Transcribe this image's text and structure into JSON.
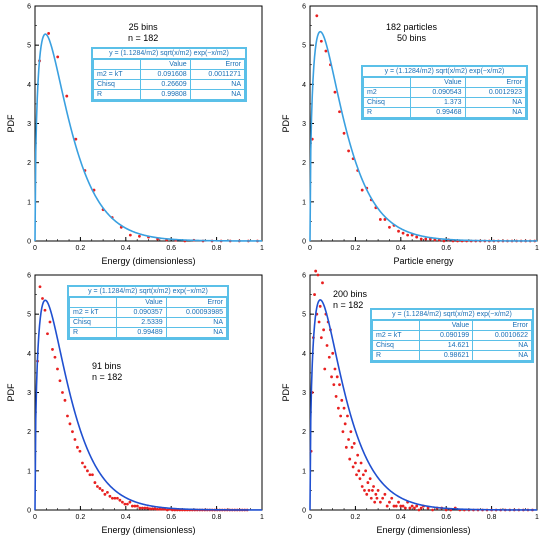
{
  "fit_box": {
    "equation": "y = (1.1284/m2) sqrt(x/m2) exp(−x/m2)",
    "col_value": "Value",
    "col_error": "Error"
  },
  "panels": [
    {
      "note1": "25 bins",
      "note2": "n = 182",
      "rows": [
        {
          "label": "m2 = kT",
          "value": "0.091608",
          "error": "0.0011271"
        },
        {
          "label": "Chisq",
          "value": "0.26609",
          "error": "NA"
        },
        {
          "label": "R",
          "value": "0.99808",
          "error": "NA"
        }
      ]
    },
    {
      "note1": "182 particles",
      "note2": "50 bins",
      "rows": [
        {
          "label": "m2",
          "value": "0.090543",
          "error": "0.0012923"
        },
        {
          "label": "Chisq",
          "value": "1.373",
          "error": "NA"
        },
        {
          "label": "R",
          "value": "0.99468",
          "error": "NA"
        }
      ]
    },
    {
      "note1": "91 bins",
      "note2": "n = 182",
      "rows": [
        {
          "label": "m2 = kT",
          "value": "0.090357",
          "error": "0.00093985"
        },
        {
          "label": "Chisq",
          "value": "2.5339",
          "error": "NA"
        },
        {
          "label": "R",
          "value": "0.99489",
          "error": "NA"
        }
      ]
    },
    {
      "note1": "200 bins",
      "note2": "n = 182",
      "rows": [
        {
          "label": "m2 = kT",
          "value": "0.090199",
          "error": "0.0010622"
        },
        {
          "label": "Chisq",
          "value": "14.621",
          "error": "NA"
        },
        {
          "label": "R",
          "value": "0.98621",
          "error": "NA"
        }
      ]
    }
  ],
  "chart_data": [
    {
      "type": "scatter",
      "xlabel": "Energy (dimensionless)",
      "ylabel": "PDF",
      "xlim": [
        0,
        1
      ],
      "ylim": [
        0,
        6
      ],
      "x_ticks": [
        "0",
        "0.2",
        "0.4",
        "0.6",
        "0.8",
        "1"
      ],
      "y_ticks": [
        "0",
        "1",
        "2",
        "3",
        "4",
        "5",
        "6"
      ],
      "fit_m2": 0.091608,
      "colors": {
        "points": "#e82020",
        "fit": "#3aa0e0"
      },
      "x": [
        0.02,
        0.06,
        0.1,
        0.14,
        0.18,
        0.22,
        0.26,
        0.3,
        0.34,
        0.38,
        0.42,
        0.46,
        0.5,
        0.54,
        0.58,
        0.62,
        0.66,
        0.7,
        0.74,
        0.78,
        0.82,
        0.86,
        0.9,
        0.94,
        0.98
      ],
      "y": [
        4.6,
        5.3,
        4.7,
        3.7,
        2.6,
        1.8,
        1.3,
        0.8,
        0.6,
        0.35,
        0.15,
        0.12,
        0.1,
        0.05,
        0.03,
        0.02,
        0,
        0.02,
        0,
        0,
        0,
        0,
        0,
        0,
        0
      ]
    },
    {
      "type": "scatter",
      "xlabel": "Particle energy",
      "ylabel": "PDF",
      "xlim": [
        0,
        1
      ],
      "ylim": [
        0,
        6
      ],
      "x_ticks": [
        "0",
        "0.2",
        "0.4",
        "0.6",
        "0.8",
        "1"
      ],
      "y_ticks": [
        "0",
        "1",
        "2",
        "3",
        "4",
        "5",
        "6"
      ],
      "fit_m2": 0.090543,
      "colors": {
        "points": "#e82020",
        "fit": "#3aa0e0"
      },
      "x": [
        0.01,
        0.03,
        0.05,
        0.07,
        0.09,
        0.11,
        0.13,
        0.15,
        0.17,
        0.19,
        0.21,
        0.23,
        0.25,
        0.27,
        0.29,
        0.31,
        0.33,
        0.35,
        0.37,
        0.39,
        0.41,
        0.43,
        0.45,
        0.47,
        0.49,
        0.51,
        0.53,
        0.55,
        0.57,
        0.59,
        0.61,
        0.63,
        0.65,
        0.67,
        0.69,
        0.71,
        0.73,
        0.75,
        0.77,
        0.79,
        0.81,
        0.83,
        0.85,
        0.87,
        0.89,
        0.91,
        0.93,
        0.95,
        0.97,
        0.99
      ],
      "y": [
        2.6,
        5.75,
        5.1,
        4.85,
        4.5,
        3.8,
        3.3,
        2.75,
        2.3,
        2.1,
        1.8,
        1.3,
        1.35,
        1.05,
        0.85,
        0.55,
        0.55,
        0.35,
        0.4,
        0.25,
        0.2,
        0.15,
        0.15,
        0.1,
        0.05,
        0.05,
        0.05,
        0.03,
        0.03,
        0,
        0.03,
        0,
        0,
        0,
        0,
        0,
        0,
        0,
        0,
        0,
        0,
        0,
        0,
        0,
        0,
        0,
        0,
        0,
        0,
        0
      ]
    },
    {
      "type": "scatter",
      "xlabel": "Energy (dimensionless)",
      "ylabel": "PDF",
      "xlim": [
        0,
        1
      ],
      "ylim": [
        0,
        6
      ],
      "x_ticks": [
        "0",
        "0.2",
        "0.4",
        "0.6",
        "0.8",
        "1"
      ],
      "y_ticks": [
        "0",
        "1",
        "2",
        "3",
        "4",
        "5",
        "6"
      ],
      "fit_m2": 0.090357,
      "colors": {
        "points": "#e82020",
        "fit": "#2050d0"
      },
      "x": [
        0.011,
        0.022,
        0.033,
        0.044,
        0.055,
        0.066,
        0.077,
        0.088,
        0.099,
        0.11,
        0.121,
        0.132,
        0.143,
        0.154,
        0.165,
        0.176,
        0.187,
        0.198,
        0.209,
        0.22,
        0.231,
        0.242,
        0.253,
        0.264,
        0.275,
        0.286,
        0.297,
        0.308,
        0.319,
        0.33,
        0.341,
        0.352,
        0.363,
        0.374,
        0.385,
        0.396,
        0.407,
        0.418,
        0.429,
        0.44,
        0.451,
        0.462,
        0.473,
        0.484,
        0.495,
        0.506,
        0.517,
        0.528,
        0.539,
        0.55,
        0.561,
        0.572,
        0.583,
        0.594,
        0.605,
        0.616,
        0.627,
        0.638,
        0.649,
        0.66,
        0.671,
        0.682,
        0.693,
        0.704,
        0.715,
        0.726,
        0.737,
        0.748,
        0.759,
        0.77,
        0.781,
        0.792,
        0.803,
        0.814,
        0.825,
        0.836,
        0.847,
        0.858,
        0.869,
        0.88,
        0.891,
        0.902,
        0.913,
        0.924,
        0.935
      ],
      "y": [
        3.8,
        5.7,
        5.4,
        5.1,
        4.5,
        4.8,
        4.1,
        3.9,
        3.6,
        3.3,
        3.0,
        2.8,
        2.4,
        2.2,
        2.0,
        1.8,
        1.6,
        1.5,
        1.2,
        1.1,
        1.0,
        0.9,
        0.9,
        0.7,
        0.6,
        0.55,
        0.5,
        0.4,
        0.45,
        0.35,
        0.3,
        0.3,
        0.3,
        0.25,
        0.2,
        0.15,
        0.15,
        0.2,
        0.1,
        0.1,
        0.1,
        0.05,
        0.05,
        0.05,
        0.05,
        0.03,
        0.03,
        0.03,
        0.02,
        0.02,
        0.02,
        0.02,
        0,
        0.02,
        0,
        0,
        0,
        0,
        0,
        0,
        0,
        0,
        0,
        0,
        0,
        0,
        0,
        0,
        0,
        0,
        0,
        0,
        0,
        0,
        0,
        0,
        0,
        0,
        0,
        0,
        0,
        0,
        0,
        0,
        0
      ]
    },
    {
      "type": "scatter",
      "xlabel": "Energy (dimensionless)",
      "ylabel": "PDF",
      "xlim": [
        0,
        1
      ],
      "ylim": [
        0,
        6
      ],
      "x_ticks": [
        "0",
        "0.2",
        "0.4",
        "0.6",
        "0.8",
        "1"
      ],
      "y_ticks": [
        "0",
        "1",
        "2",
        "3",
        "4",
        "5",
        "6"
      ],
      "fit_m2": 0.090199,
      "colors": {
        "points": "#e82020",
        "fit": "#2050d0"
      },
      "x": [
        0.005,
        0.01,
        0.015,
        0.02,
        0.025,
        0.03,
        0.035,
        0.04,
        0.045,
        0.05,
        0.055,
        0.06,
        0.065,
        0.07,
        0.075,
        0.08,
        0.085,
        0.09,
        0.095,
        0.1,
        0.105,
        0.11,
        0.115,
        0.12,
        0.125,
        0.13,
        0.135,
        0.14,
        0.145,
        0.15,
        0.155,
        0.16,
        0.165,
        0.17,
        0.175,
        0.18,
        0.185,
        0.19,
        0.195,
        0.2,
        0.205,
        0.21,
        0.215,
        0.22,
        0.225,
        0.23,
        0.235,
        0.24,
        0.245,
        0.25,
        0.255,
        0.26,
        0.265,
        0.27,
        0.275,
        0.28,
        0.285,
        0.29,
        0.295,
        0.3,
        0.31,
        0.32,
        0.33,
        0.34,
        0.35,
        0.36,
        0.37,
        0.38,
        0.39,
        0.4,
        0.41,
        0.42,
        0.43,
        0.44,
        0.45,
        0.46,
        0.47,
        0.48,
        0.49,
        0.5,
        0.52,
        0.54,
        0.56,
        0.58,
        0.6,
        0.62,
        0.64,
        0.66,
        0.68,
        0.7,
        0.72,
        0.74,
        0.76,
        0.78,
        0.8,
        0.82,
        0.84,
        0.86,
        0.88,
        0.9,
        0.92,
        0.94,
        0.96,
        0.98
      ],
      "y": [
        1.5,
        3.0,
        4.4,
        5.5,
        6.1,
        5.0,
        6.0,
        4.8,
        5.2,
        4.4,
        5.8,
        4.6,
        3.6,
        5.0,
        4.2,
        4.8,
        3.9,
        4.6,
        3.4,
        4.0,
        3.2,
        3.6,
        2.9,
        3.4,
        2.6,
        3.2,
        2.4,
        2.8,
        2.0,
        2.6,
        2.2,
        1.6,
        2.4,
        1.8,
        1.3,
        2.0,
        1.6,
        1.1,
        1.7,
        1.2,
        0.9,
        1.4,
        1.0,
        0.8,
        1.2,
        0.6,
        0.9,
        0.5,
        1.0,
        0.4,
        0.7,
        0.5,
        0.8,
        0.3,
        0.5,
        0.6,
        0.2,
        0.4,
        0.3,
        0.5,
        0.2,
        0.3,
        0.4,
        0.1,
        0.2,
        0.3,
        0.1,
        0.1,
        0.2,
        0.1,
        0.1,
        0.05,
        0.2,
        0.05,
        0.1,
        0.05,
        0.1,
        0,
        0.05,
        0.1,
        0.05,
        0,
        0.05,
        0.05,
        0,
        0,
        0.05,
        0,
        0,
        0,
        0,
        0,
        0,
        0,
        0,
        0,
        0,
        0,
        0,
        0,
        0,
        0,
        0,
        0
      ]
    }
  ]
}
